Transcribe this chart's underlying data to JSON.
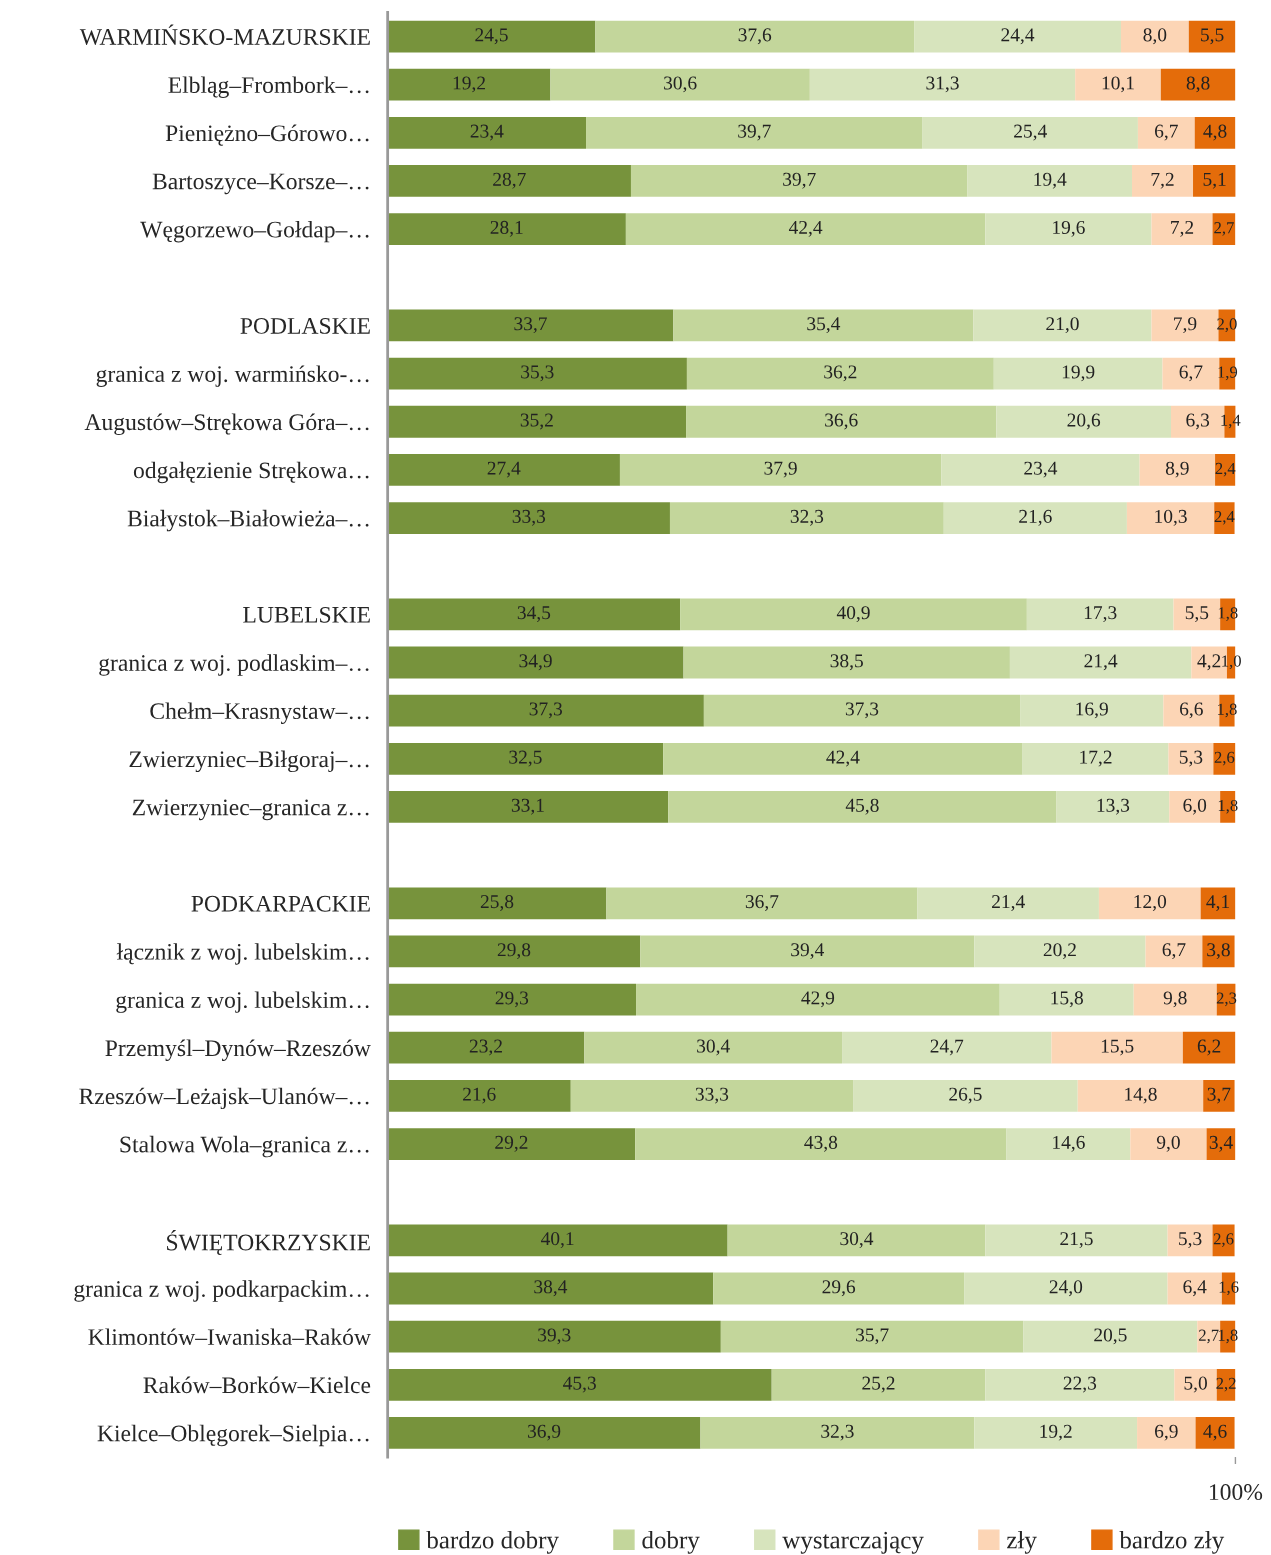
{
  "chart_data": {
    "type": "bar",
    "orientation": "horizontal",
    "stacked": true,
    "categories": [
      "WARMIŃSKO-MAZURSKIE",
      "Elbląg–Frombork–…",
      "Pieniężno–Górowo…",
      "Bartoszyce–Korsze–…",
      "Węgorzewo–Gołdap–…",
      null,
      "PODLASKIE",
      "granica z woj. warmińsko-…",
      "Augustów–Strękowa Góra–…",
      "odgałęzienie Strękowa…",
      "Białystok–Białowieża–…",
      null,
      "LUBELSKIE",
      "granica z woj. podlaskim–…",
      "Chełm–Krasnystaw–…",
      "Zwierzyniec–Biłgoraj–…",
      "Zwierzyniec–granica z…",
      null,
      "PODKARPACKIE",
      "łącznik z woj. lubelskim…",
      "granica z woj. lubelskim…",
      "Przemyśl–Dynów–Rzeszów",
      "Rzeszów–Leżajsk–Ulanów–…",
      "Stalowa Wola–granica z…",
      null,
      "ŚWIĘTOKRZYSKIE",
      "granica z woj. podkarpackim…",
      "Klimontów–Iwaniska–Raków",
      "Raków–Borków–Kielce",
      "Kielce–Oblęgorek–Sielpia…"
    ],
    "series": [
      {
        "name": "bardzo dobry",
        "color": "#77933c",
        "values": [
          24.5,
          19.2,
          23.4,
          28.7,
          28.1,
          null,
          33.7,
          35.3,
          35.2,
          27.4,
          33.3,
          null,
          34.5,
          34.9,
          37.3,
          32.5,
          33.1,
          null,
          25.8,
          29.8,
          29.3,
          23.2,
          21.6,
          29.2,
          null,
          40.1,
          38.4,
          39.3,
          45.3,
          36.9
        ],
        "value_labels": [
          "24,5",
          "19,2",
          "23,4",
          "28,7",
          "28,1",
          null,
          "33,7",
          "35,3",
          "35,2",
          "27,4",
          "33,3",
          null,
          "34,5",
          "34,9",
          "37,3",
          "32,5",
          "33,1",
          null,
          "25,8",
          "29,8",
          "29,3",
          "23,2",
          "21,6",
          "29,2",
          null,
          "40,1",
          "38,4",
          "39,3",
          "45,3",
          "36,9"
        ]
      },
      {
        "name": "dobry",
        "color": "#c3d69b",
        "values": [
          37.6,
          30.6,
          39.7,
          39.7,
          42.4,
          null,
          35.4,
          36.2,
          36.6,
          37.9,
          32.3,
          null,
          40.9,
          38.5,
          37.3,
          42.4,
          45.8,
          null,
          36.7,
          39.4,
          42.9,
          30.4,
          33.3,
          43.8,
          null,
          30.4,
          29.6,
          35.7,
          25.2,
          32.3
        ],
        "value_labels": [
          "37,6",
          "30,6",
          "39,7",
          "39,7",
          "42,4",
          null,
          "35,4",
          "36,2",
          "36,6",
          "37,9",
          "32,3",
          null,
          "40,9",
          "38,5",
          "37,3",
          "42,4",
          "45,8",
          null,
          "36,7",
          "39,4",
          "42,9",
          "30,4",
          "33,3",
          "43,8",
          null,
          "30,4",
          "29,6",
          "35,7",
          "25,2",
          "32,3"
        ]
      },
      {
        "name": "wystarczający",
        "color": "#d7e4bd",
        "values": [
          24.4,
          31.3,
          25.4,
          19.4,
          19.6,
          null,
          21.0,
          19.9,
          20.6,
          23.4,
          21.6,
          null,
          17.3,
          21.4,
          16.9,
          17.2,
          13.3,
          null,
          21.4,
          20.2,
          15.8,
          24.7,
          26.5,
          14.6,
          null,
          21.5,
          24.0,
          20.5,
          22.3,
          19.2
        ],
        "value_labels": [
          "24,4",
          "31,3",
          "25,4",
          "19,4",
          "19,6",
          null,
          "21,0",
          "19,9",
          "20,6",
          "23,4",
          "21,6",
          null,
          "17,3",
          "21,4",
          "16,9",
          "17,2",
          "13,3",
          null,
          "21,4",
          "20,2",
          "15,8",
          "24,7",
          "26,5",
          "14,6",
          null,
          "21,5",
          "24,0",
          "20,5",
          "22,3",
          "19,2"
        ]
      },
      {
        "name": "zły",
        "color": "#fcd5b5",
        "values": [
          8.0,
          10.1,
          6.7,
          7.2,
          7.2,
          null,
          7.9,
          6.7,
          6.3,
          8.9,
          10.3,
          null,
          5.5,
          4.2,
          6.6,
          5.3,
          6.0,
          null,
          12.0,
          6.7,
          9.8,
          15.5,
          14.8,
          9.0,
          null,
          5.3,
          6.4,
          2.7,
          5.0,
          6.9
        ],
        "value_labels": [
          "8,0",
          "10,1",
          "6,7",
          "7,2",
          "7,2",
          null,
          "7,9",
          "6,7",
          "6,3",
          "8,9",
          "10,3",
          null,
          "5,5",
          "4,2",
          "6,6",
          "5,3",
          "6,0",
          null,
          "12,0",
          "6,7",
          "9,8",
          "15,5",
          "14,8",
          "9,0",
          null,
          "5,3",
          "6,4",
          "2,7",
          "5,0",
          "6,9"
        ]
      },
      {
        "name": "bardzo zły",
        "color": "#e46c0a",
        "values": [
          5.5,
          8.8,
          4.8,
          5.1,
          2.7,
          null,
          2.0,
          1.9,
          1.4,
          2.4,
          2.4,
          null,
          1.8,
          1.0,
          1.8,
          2.6,
          1.8,
          null,
          4.1,
          3.8,
          2.3,
          6.2,
          3.7,
          3.4,
          null,
          2.6,
          1.6,
          1.8,
          2.2,
          4.6
        ],
        "value_labels": [
          "5,5",
          "8,8",
          "4,8",
          "5,1",
          "2,7",
          null,
          "2,0",
          "1,9",
          "1,4",
          "2,4",
          "2,4",
          null,
          "1,8",
          "1,0",
          "1,8",
          "2,6",
          "1,8",
          null,
          "4,1",
          "3,8",
          "2,3",
          "6,2",
          "3,7",
          "3,4",
          null,
          "2,6",
          "1,6",
          "1,8",
          "2,2",
          "4,6"
        ]
      }
    ],
    "xlim": [
      0,
      100
    ],
    "xticks": [
      {
        "value": 100,
        "label": "100%"
      }
    ],
    "grid": false,
    "legend": "bottom"
  }
}
